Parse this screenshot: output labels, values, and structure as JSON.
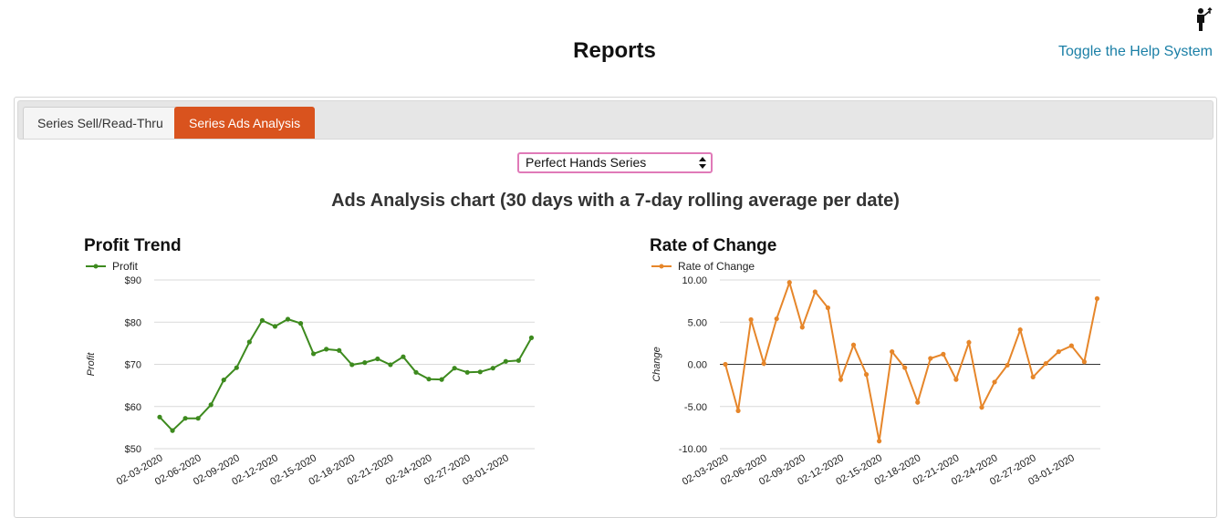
{
  "header": {
    "title": "Reports",
    "help_link": "Toggle the Help System"
  },
  "tabs": [
    {
      "label": "Series Sell/Read-Thru",
      "active": false
    },
    {
      "label": "Series Ads Analysis",
      "active": true
    }
  ],
  "series_select": {
    "value": "Perfect Hands Series"
  },
  "section_title": "Ads Analysis chart (30 days with a 7-day rolling average per date)",
  "colors": {
    "accent": "#d9531e",
    "profit": "#3d8a1e",
    "roc": "#e6862a",
    "link": "#1a7fa6",
    "select_border": "#e07ab8"
  },
  "chart_data": [
    {
      "type": "line",
      "title": "Profit Trend",
      "ylabel": "Profit",
      "xlabel": "",
      "legend": "top-left",
      "grid": true,
      "series": [
        {
          "name": "Profit",
          "values": [
            57.5,
            54.3,
            57.2,
            57.2,
            60.4,
            66.3,
            69.2,
            75.3,
            80.4,
            79.0,
            80.7,
            79.7,
            72.5,
            73.6,
            73.3,
            69.9,
            70.4,
            71.3,
            69.9,
            71.8,
            68.1,
            66.5,
            66.4,
            69.1,
            68.1,
            68.2,
            69.1,
            70.7,
            70.9,
            76.3
          ]
        }
      ],
      "x_tick_labels": [
        "02-03-2020",
        "02-06-2020",
        "02-09-2020",
        "02-12-2020",
        "02-15-2020",
        "02-18-2020",
        "02-21-2020",
        "02-24-2020",
        "02-27-2020",
        "03-01-2020"
      ],
      "y_ticks": [
        "$90",
        "$80",
        "$70",
        "$60",
        "$50"
      ],
      "ylim": [
        50,
        90
      ]
    },
    {
      "type": "line",
      "title": "Rate of Change",
      "ylabel": "Change",
      "xlabel": "",
      "legend": "top-left",
      "grid": true,
      "series": [
        {
          "name": "Rate of Change",
          "values": [
            0.0,
            -5.5,
            5.3,
            0.1,
            5.4,
            9.7,
            4.4,
            8.6,
            6.7,
            -1.8,
            2.3,
            -1.2,
            -9.1,
            1.5,
            -0.4,
            -4.5,
            0.7,
            1.2,
            -1.8,
            2.6,
            -5.1,
            -2.1,
            -0.1,
            4.1,
            -1.5,
            0.1,
            1.5,
            2.2,
            0.3,
            7.8
          ]
        }
      ],
      "x_tick_labels": [
        "02-03-2020",
        "02-06-2020",
        "02-09-2020",
        "02-12-2020",
        "02-15-2020",
        "02-18-2020",
        "02-21-2020",
        "02-24-2020",
        "02-27-2020",
        "03-01-2020"
      ],
      "y_ticks": [
        "10.00",
        "5.00",
        "0.00",
        "-5.00",
        "-10.00"
      ],
      "ylim": [
        -10,
        10
      ]
    }
  ]
}
